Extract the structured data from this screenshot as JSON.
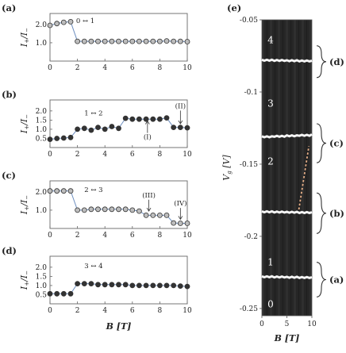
{
  "chart_data": [
    {
      "type": "line",
      "panel_label": "(a)",
      "xlabel": "",
      "ylabel": "I+/I−",
      "xlim": [
        0,
        10
      ],
      "ylim": [
        0,
        2.6
      ],
      "xticks": [
        "0",
        "2",
        "4",
        "6",
        "8",
        "10"
      ],
      "yticks": [
        "1.0",
        "2.0"
      ],
      "marker": "open",
      "x": [
        0,
        0.5,
        1,
        1.5,
        2,
        2.5,
        3,
        3.5,
        4,
        4.5,
        5,
        5.5,
        6,
        6.5,
        7,
        7.5,
        8,
        8.5,
        9,
        9.5,
        10
      ],
      "y": [
        1.95,
        2.05,
        2.12,
        2.15,
        1.08,
        1.08,
        1.08,
        1.08,
        1.08,
        1.08,
        1.08,
        1.08,
        1.08,
        1.08,
        1.08,
        1.08,
        1.08,
        1.1,
        1.08,
        1.08,
        1.06
      ],
      "annotations": [
        {
          "text": "0 ↔ 1",
          "x": 1.9,
          "y": 2.08
        }
      ]
    },
    {
      "type": "line",
      "panel_label": "(b)",
      "xlabel": "",
      "ylabel": "I+/I−",
      "xlim": [
        0,
        10
      ],
      "ylim": [
        0,
        2.6
      ],
      "xticks": [
        "0",
        "2",
        "4",
        "6",
        "8",
        "10"
      ],
      "yticks": [
        "0.5",
        "1.0",
        "1.5",
        "2.0"
      ],
      "marker": "filled",
      "x": [
        0,
        0.5,
        1,
        1.5,
        2,
        2.5,
        3,
        3.5,
        4,
        4.5,
        5,
        5.5,
        6,
        6.5,
        7,
        7.5,
        8,
        8.5,
        9,
        9.5,
        10
      ],
      "y": [
        0.45,
        0.5,
        0.52,
        0.55,
        1.0,
        1.05,
        0.95,
        1.1,
        1.0,
        1.15,
        1.05,
        1.6,
        1.55,
        1.55,
        1.55,
        1.55,
        1.55,
        1.62,
        1.1,
        1.1,
        1.08
      ],
      "annotations": [
        {
          "text": "1 ↔ 2",
          "x": 2.5,
          "y": 1.75
        },
        {
          "text": "(I)",
          "x": 7.1,
          "y": 0.45,
          "arrow_to": [
            7.1,
            1.45
          ]
        },
        {
          "text": "(II)",
          "x": 9.5,
          "y": 2.15,
          "arrow_to": [
            9.5,
            1.3
          ]
        }
      ]
    },
    {
      "type": "line",
      "panel_label": "(c)",
      "xlabel": "",
      "ylabel": "I+/I−",
      "xlim": [
        0,
        10
      ],
      "ylim": [
        0,
        2.6
      ],
      "xticks": [
        "0",
        "2",
        "4",
        "6",
        "8",
        "10"
      ],
      "yticks": [
        "1.0",
        "2.0"
      ],
      "marker": "open",
      "x": [
        0,
        0.5,
        1,
        1.5,
        2,
        2.5,
        3,
        3.5,
        4,
        4.5,
        5,
        5.5,
        6,
        6.5,
        7,
        7.5,
        8,
        8.5,
        9,
        9.5,
        10
      ],
      "y": [
        2.05,
        2.05,
        2.05,
        2.05,
        1.0,
        1.0,
        1.05,
        1.05,
        1.05,
        1.05,
        1.05,
        1.05,
        1.0,
        0.95,
        0.72,
        0.72,
        0.72,
        0.72,
        0.3,
        0.28,
        0.28
      ],
      "annotations": [
        {
          "text": "2 ↔ 3",
          "x": 2.5,
          "y": 2.0
        },
        {
          "text": "(III)",
          "x": 7.2,
          "y": 1.7,
          "arrow_to": [
            7.2,
            0.95
          ]
        },
        {
          "text": "(IV)",
          "x": 9.5,
          "y": 1.25,
          "arrow_to": [
            9.5,
            0.5
          ]
        }
      ]
    },
    {
      "type": "line",
      "panel_label": "(d)",
      "xlabel": "B [T]",
      "ylabel": "I+/I−",
      "xlim": [
        0,
        10
      ],
      "ylim": [
        0,
        2.6
      ],
      "xticks": [
        "0",
        "2",
        "4",
        "6",
        "8",
        "10"
      ],
      "yticks": [
        "0.5",
        "1.0",
        "1.5",
        "2.0"
      ],
      "marker": "filled",
      "x": [
        0,
        0.5,
        1,
        1.5,
        2,
        2.5,
        3,
        3.5,
        4,
        4.5,
        5,
        5.5,
        6,
        6.5,
        7,
        7.5,
        8,
        8.5,
        9,
        9.5,
        10
      ],
      "y": [
        0.55,
        0.55,
        0.55,
        0.55,
        1.1,
        1.1,
        1.1,
        1.05,
        1.05,
        1.05,
        1.05,
        1.05,
        1.0,
        1.0,
        1.0,
        1.0,
        1.0,
        1.0,
        1.0,
        0.97,
        0.95
      ],
      "annotations": [
        {
          "text": "3 ↔ 4",
          "x": 2.5,
          "y": 1.95
        }
      ]
    },
    {
      "type": "heatmap",
      "panel_label": "(e)",
      "xlabel": "B [T]",
      "ylabel": "Vg [V]",
      "xlim": [
        0,
        10
      ],
      "ylim": [
        -0.255,
        -0.05
      ],
      "xticks": [
        "0",
        "5",
        "10"
      ],
      "yticks": [
        "-0.05",
        "-0.1",
        "-0.15",
        "-0.2",
        "-0.25"
      ],
      "region_labels": [
        {
          "text": "0",
          "y": -0.247
        },
        {
          "text": "1",
          "y": -0.218
        },
        {
          "text": "2",
          "y": -0.148
        },
        {
          "text": "3",
          "y": -0.108
        },
        {
          "text": "4",
          "y": -0.064
        }
      ],
      "lines": [
        {
          "name": "(a)",
          "y": -0.228
        },
        {
          "name": "(b)",
          "y": -0.183
        },
        {
          "name": "(c)",
          "y": -0.131
        },
        {
          "name": "(d)",
          "y": -0.078
        }
      ],
      "brackets": [
        {
          "text": "(d)",
          "y_range": [
            -0.068,
            -0.09
          ]
        },
        {
          "text": "(c)",
          "y_range": [
            -0.122,
            -0.149
          ]
        },
        {
          "text": "(b)",
          "y_range": [
            -0.17,
            -0.198
          ]
        },
        {
          "text": "(a)",
          "y_range": [
            -0.218,
            -0.242
          ]
        }
      ]
    }
  ]
}
